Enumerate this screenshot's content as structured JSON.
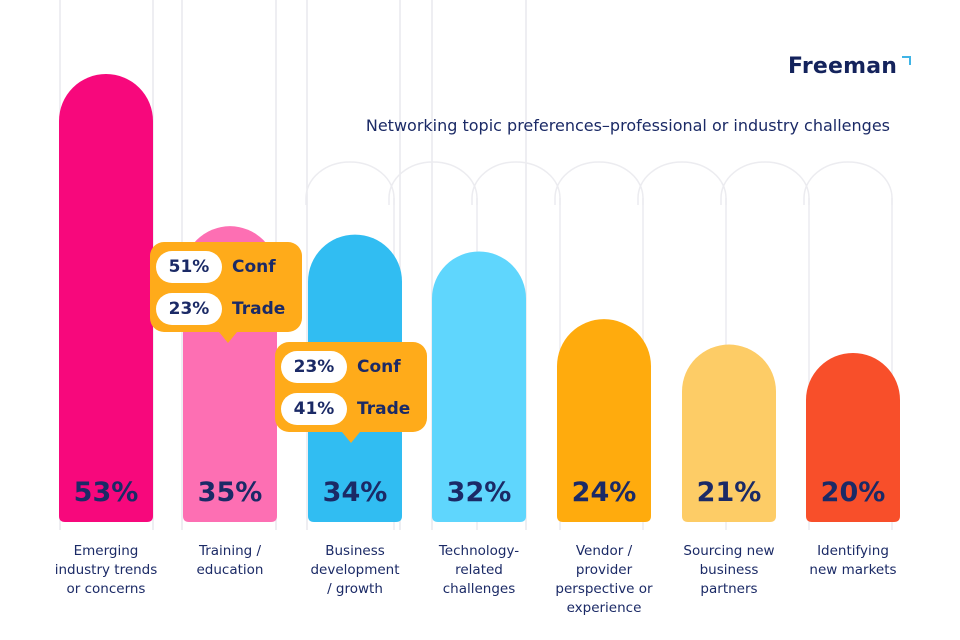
{
  "brand": {
    "name": "Freeman"
  },
  "chart_data": {
    "type": "bar",
    "title": "Networking topic preferences–professional or industry challenges",
    "xlabel": "",
    "ylabel": "",
    "ylim": [
      0,
      60
    ],
    "categories": [
      "Emerging industry trends or concerns",
      "Training / education",
      "Business development / growth",
      "Technology-related challenges",
      "Vendor / provider perspective or experience",
      "Sourcing new business partners",
      "Identifying new markets"
    ],
    "category_lines": [
      [
        "Emerging",
        "industry trends",
        "or concerns"
      ],
      [
        "Training /",
        "education"
      ],
      [
        "Business",
        "development",
        "/ growth"
      ],
      [
        "Technology-",
        "related",
        "challenges"
      ],
      [
        "Vendor /",
        "provider",
        "perspective or",
        "experience"
      ],
      [
        "Sourcing new",
        "business",
        "partners"
      ],
      [
        "Identifying",
        "new markets"
      ]
    ],
    "values": [
      53,
      35,
      34,
      32,
      24,
      21,
      20
    ],
    "value_labels": [
      "53%",
      "35%",
      "34%",
      "32%",
      "24%",
      "21%",
      "20%"
    ],
    "colors": [
      "#f7087c",
      "#fd6fb3",
      "#31bdf2",
      "#5fd6fd",
      "#ffab0d",
      "#fdcc66",
      "#f84f2a"
    ],
    "callouts": [
      {
        "category": "Training / education",
        "rows": [
          {
            "value": "51%",
            "label": "Conf"
          },
          {
            "value": "23%",
            "label": "Trade"
          }
        ]
      },
      {
        "category": "Business development / growth",
        "rows": [
          {
            "value": "23%",
            "label": "Conf"
          },
          {
            "value": "41%",
            "label": "Trade"
          }
        ]
      }
    ]
  },
  "colors": {
    "accent": "#ffab1a",
    "text": "#1b2a66",
    "brand": "#14235c"
  }
}
